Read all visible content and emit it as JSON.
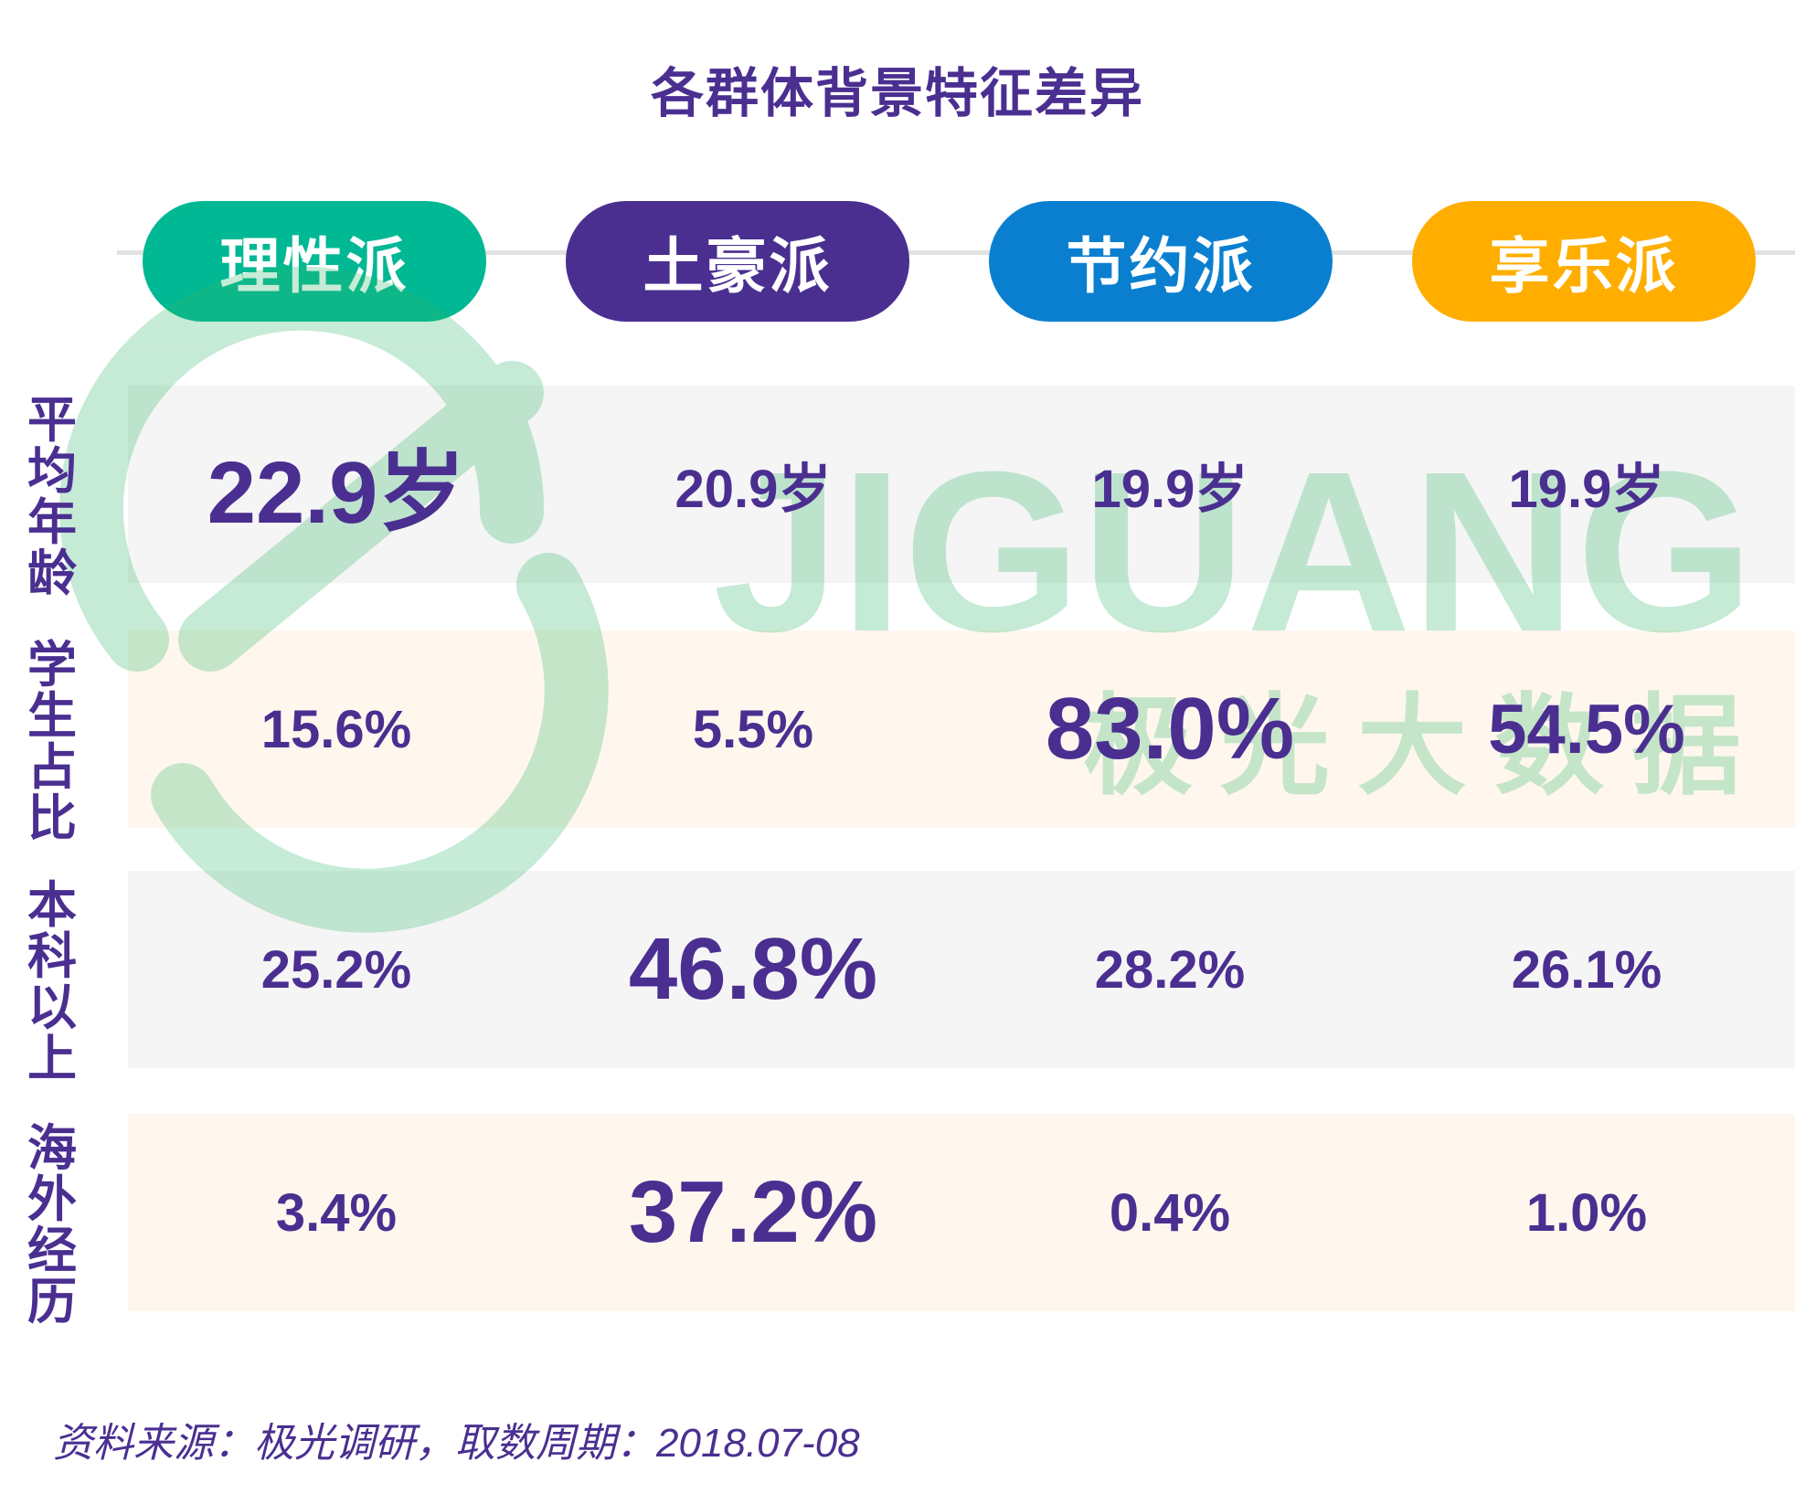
{
  "title": "各群体背景特征差异",
  "groups": [
    {
      "label": "理性派",
      "color": "#00b894"
    },
    {
      "label": "土豪派",
      "color": "#4a2f91"
    },
    {
      "label": "节约派",
      "color": "#0a7fd0"
    },
    {
      "label": "享乐派",
      "color": "#ffae00"
    }
  ],
  "rows": [
    {
      "label": "平均年龄",
      "values": [
        "22.9岁",
        "20.9岁",
        "19.9岁",
        "19.9岁"
      ],
      "highlight": 0
    },
    {
      "label": "学生占比",
      "values": [
        "15.6%",
        "5.5%",
        "83.0%",
        "54.5%"
      ],
      "highlight": [
        2,
        3
      ]
    },
    {
      "label": "本科以上",
      "values": [
        "25.2%",
        "46.8%",
        "28.2%",
        "26.1%"
      ],
      "highlight": 1
    },
    {
      "label": "海外经历",
      "values": [
        "3.4%",
        "37.2%",
        "0.4%",
        "1.0%"
      ],
      "highlight": 1
    }
  ],
  "row_backgrounds": [
    "#f5f5f5",
    "#fff7ee",
    "#f5f5f5",
    "#fff7ee"
  ],
  "watermark": {
    "brand_en": "JIGUANG",
    "brand_cn": "极光大数据"
  },
  "source": "资料来源：极光调研，取数周期：2018.07-08",
  "chart_data": {
    "type": "table",
    "title": "各群体背景特征差异",
    "columns": [
      "理性派",
      "土豪派",
      "节约派",
      "享乐派"
    ],
    "rows": [
      {
        "label": "平均年龄",
        "values": [
          22.9,
          20.9,
          19.9,
          19.9
        ],
        "unit": "岁"
      },
      {
        "label": "学生占比",
        "values": [
          15.6,
          5.5,
          83.0,
          54.5
        ],
        "unit": "%"
      },
      {
        "label": "本科以上",
        "values": [
          25.2,
          46.8,
          28.2,
          26.1
        ],
        "unit": "%"
      },
      {
        "label": "海外经历",
        "values": [
          3.4,
          37.2,
          0.4,
          1.0
        ],
        "unit": "%"
      }
    ]
  }
}
